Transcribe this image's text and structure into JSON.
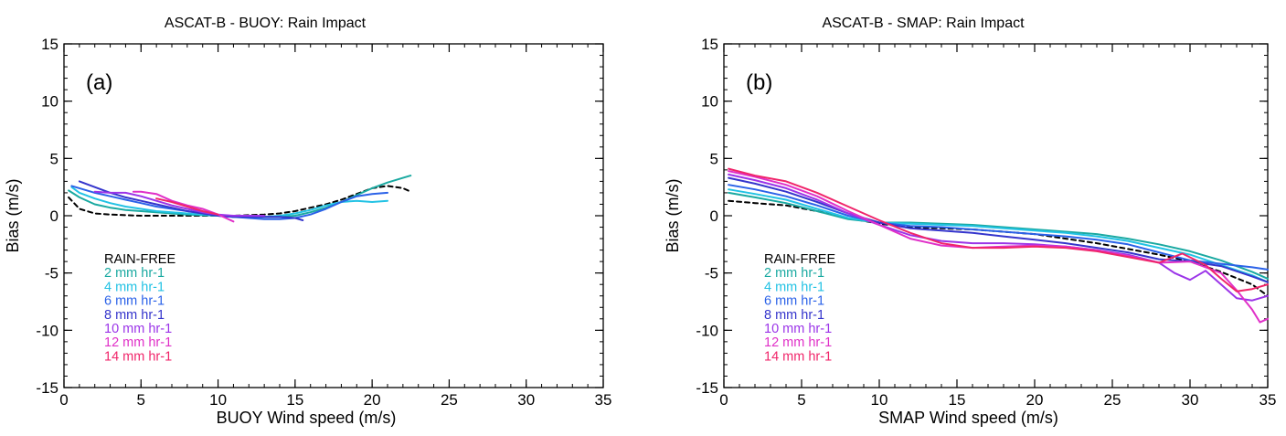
{
  "chart_data": [
    {
      "type": "line",
      "panel_label": "(a)",
      "title": "ASCAT-B - BUOY: Rain Impact",
      "xlabel": "BUOY Wind speed (m/s)",
      "ylabel": "Bias (m/s)",
      "xlim": [
        0,
        35
      ],
      "ylim": [
        -15,
        15
      ],
      "xticks": [
        0,
        5,
        10,
        15,
        20,
        25,
        30,
        35
      ],
      "yticks": [
        -15,
        -10,
        -5,
        0,
        5,
        10,
        15
      ],
      "legend_position": "lower-left",
      "series": [
        {
          "name": "RAIN-FREE",
          "color": "#000000",
          "dashed": true,
          "x": [
            0.3,
            1,
            2,
            3,
            4,
            5,
            6,
            7,
            8,
            9,
            10,
            11,
            12,
            13,
            14,
            15,
            16,
            17,
            18,
            19,
            20,
            21,
            22,
            22.5
          ],
          "y": [
            1.6,
            0.6,
            0.2,
            0.1,
            0.05,
            0.0,
            0.0,
            0.0,
            0.0,
            0.0,
            0.0,
            0.0,
            0.05,
            0.1,
            0.2,
            0.4,
            0.7,
            1.0,
            1.4,
            1.9,
            2.4,
            2.6,
            2.4,
            2.1
          ]
        },
        {
          "name": "2 mm hr-1",
          "color": "#1aa9a1",
          "x": [
            0.3,
            1,
            2,
            3,
            4,
            5,
            6,
            7,
            8,
            9,
            10,
            11,
            12,
            13,
            14,
            15,
            16,
            17,
            18,
            19,
            20,
            21,
            22,
            22.5
          ],
          "y": [
            2.2,
            1.6,
            1.0,
            0.7,
            0.5,
            0.4,
            0.3,
            0.2,
            0.1,
            0.05,
            0.0,
            -0.05,
            -0.1,
            -0.1,
            -0.1,
            0.0,
            0.3,
            0.7,
            1.2,
            1.8,
            2.4,
            2.9,
            3.3,
            3.5
          ]
        },
        {
          "name": "4 mm hr-1",
          "color": "#22c2e4",
          "x": [
            0.5,
            1,
            2,
            3,
            4,
            5,
            6,
            7,
            8,
            9,
            10,
            11,
            12,
            13,
            14,
            15,
            16,
            17,
            18,
            19,
            20,
            21
          ],
          "y": [
            2.5,
            2.0,
            1.5,
            1.1,
            0.8,
            0.6,
            0.4,
            0.3,
            0.2,
            0.1,
            0.0,
            -0.1,
            -0.1,
            -0.1,
            0.0,
            0.2,
            0.5,
            0.9,
            1.2,
            1.3,
            1.2,
            1.3
          ]
        },
        {
          "name": "6 mm hr-1",
          "color": "#2b62e8",
          "x": [
            0.5,
            1,
            2,
            3,
            4,
            5,
            6,
            7,
            8,
            9,
            10,
            11,
            12,
            13,
            14,
            15,
            16,
            17,
            18,
            19,
            20,
            21
          ],
          "y": [
            2.6,
            2.4,
            2.0,
            1.7,
            1.4,
            1.1,
            0.8,
            0.6,
            0.4,
            0.2,
            0.0,
            -0.1,
            -0.2,
            -0.3,
            -0.3,
            -0.2,
            0.1,
            0.6,
            1.2,
            1.7,
            1.9,
            2.0
          ]
        },
        {
          "name": "8 mm hr-1",
          "color": "#3535cc",
          "x": [
            1,
            2,
            3,
            4,
            5,
            6,
            7,
            8,
            9,
            10,
            11,
            12,
            13,
            14,
            15,
            15.5
          ],
          "y": [
            3.0,
            2.5,
            2.0,
            1.6,
            1.3,
            1.0,
            0.7,
            0.4,
            0.2,
            0.0,
            -0.1,
            -0.1,
            -0.1,
            -0.1,
            -0.2,
            -0.4
          ]
        },
        {
          "name": "10 mm hr-1",
          "color": "#9b34e8",
          "x": [
            2,
            3,
            4,
            5,
            6,
            7,
            8,
            9,
            10,
            11,
            12,
            13
          ],
          "y": [
            2.1,
            2.0,
            2.0,
            1.7,
            1.3,
            0.9,
            0.6,
            0.3,
            0.1,
            0.0,
            0.0,
            0.0
          ]
        },
        {
          "name": "12 mm hr-1",
          "color": "#e030c8",
          "x": [
            4.5,
            5,
            6,
            7,
            8,
            9,
            10,
            10.5,
            11
          ],
          "y": [
            2.1,
            2.1,
            1.9,
            1.3,
            0.9,
            0.6,
            0.1,
            -0.2,
            -0.5
          ]
        },
        {
          "name": "14 mm hr-1",
          "color": "#f0256a",
          "x": [
            6,
            7,
            8,
            9,
            10
          ],
          "y": [
            1.5,
            1.2,
            0.8,
            0.4,
            0.1
          ]
        }
      ]
    },
    {
      "type": "line",
      "panel_label": "(b)",
      "title": "ASCAT-B - SMAP: Rain Impact",
      "xlabel": "SMAP Wind speed (m/s)",
      "ylabel": "Bias (m/s)",
      "xlim": [
        0,
        35
      ],
      "ylim": [
        -15,
        15
      ],
      "xticks": [
        0,
        5,
        10,
        15,
        20,
        25,
        30,
        35
      ],
      "yticks": [
        -15,
        -10,
        -5,
        0,
        5,
        10,
        15
      ],
      "legend_position": "lower-left",
      "series": [
        {
          "name": "RAIN-FREE",
          "color": "#000000",
          "dashed": true,
          "x": [
            0.3,
            2,
            4,
            6,
            8,
            10,
            12,
            14,
            16,
            18,
            20,
            22,
            24,
            26,
            28,
            30,
            32,
            34,
            35
          ],
          "y": [
            1.3,
            1.1,
            0.9,
            0.4,
            -0.2,
            -0.7,
            -1.0,
            -1.1,
            -1.2,
            -1.4,
            -1.6,
            -2.0,
            -2.4,
            -2.9,
            -3.4,
            -4.0,
            -4.9,
            -6.0,
            -7.0
          ]
        },
        {
          "name": "2 mm hr-1",
          "color": "#1aa9a1",
          "x": [
            0.3,
            2,
            4,
            6,
            8,
            10,
            12,
            14,
            16,
            18,
            20,
            22,
            24,
            26,
            28,
            30,
            32,
            34,
            35
          ],
          "y": [
            2.0,
            1.6,
            1.1,
            0.4,
            -0.3,
            -0.6,
            -0.6,
            -0.7,
            -0.8,
            -1.0,
            -1.2,
            -1.4,
            -1.6,
            -2.0,
            -2.5,
            -3.1,
            -3.9,
            -4.9,
            -5.5
          ]
        },
        {
          "name": "4 mm hr-1",
          "color": "#22c2e4",
          "x": [
            0.3,
            2,
            4,
            6,
            8,
            10,
            12,
            14,
            16,
            18,
            20,
            22,
            24,
            26,
            28,
            30,
            32,
            34,
            35
          ],
          "y": [
            2.3,
            1.9,
            1.4,
            0.6,
            -0.2,
            -0.6,
            -0.7,
            -0.8,
            -0.9,
            -1.1,
            -1.3,
            -1.5,
            -1.8,
            -2.2,
            -2.8,
            -3.4,
            -4.3,
            -5.2,
            -5.8
          ]
        },
        {
          "name": "6 mm hr-1",
          "color": "#2b62e8",
          "x": [
            0.3,
            2,
            4,
            6,
            8,
            10,
            12,
            14,
            16,
            18,
            20,
            22,
            24,
            26,
            28,
            30,
            32,
            34,
            35
          ],
          "y": [
            2.7,
            2.3,
            1.7,
            0.9,
            0.0,
            -0.6,
            -0.9,
            -1.0,
            -1.2,
            -1.4,
            -1.6,
            -1.8,
            -2.1,
            -2.5,
            -3.2,
            -3.9,
            -4.2,
            -4.5,
            -4.7
          ]
        },
        {
          "name": "8 mm hr-1",
          "color": "#3535cc",
          "x": [
            0.3,
            2,
            4,
            6,
            8,
            10,
            12,
            14,
            16,
            18,
            20,
            22,
            24,
            26,
            28,
            30,
            32,
            34,
            35
          ],
          "y": [
            3.3,
            2.8,
            2.1,
            1.2,
            0.2,
            -0.6,
            -1.1,
            -1.3,
            -1.5,
            -1.8,
            -2.1,
            -2.4,
            -2.8,
            -3.2,
            -3.8,
            -4.0,
            -4.4,
            -5.3,
            -5.8
          ]
        },
        {
          "name": "10 mm hr-1",
          "color": "#9b34e8",
          "x": [
            0.3,
            2,
            4,
            6,
            8,
            10,
            12,
            14,
            16,
            18,
            20,
            22,
            24,
            26,
            28,
            29,
            30,
            31,
            32,
            33,
            34,
            35
          ],
          "y": [
            3.6,
            3.1,
            2.4,
            1.4,
            0.2,
            -0.8,
            -1.7,
            -2.2,
            -2.4,
            -2.4,
            -2.5,
            -2.7,
            -3.0,
            -3.4,
            -4.1,
            -5.0,
            -5.6,
            -4.8,
            -6.0,
            -7.2,
            -7.4,
            -7.0
          ]
        },
        {
          "name": "12 mm hr-1",
          "color": "#e030c8",
          "x": [
            0.3,
            2,
            4,
            6,
            8,
            10,
            12,
            14,
            16,
            18,
            20,
            22,
            24,
            26,
            28,
            30,
            32,
            33,
            34,
            34.5,
            35
          ],
          "y": [
            3.9,
            3.4,
            2.7,
            1.7,
            0.4,
            -0.8,
            -2.0,
            -2.6,
            -2.8,
            -2.7,
            -2.6,
            -2.7,
            -3.0,
            -3.5,
            -4.1,
            -4.0,
            -5.0,
            -6.5,
            -8.2,
            -9.3,
            -9.0
          ]
        },
        {
          "name": "14 mm hr-1",
          "color": "#f0256a",
          "x": [
            0.3,
            2,
            4,
            6,
            8,
            10,
            12,
            14,
            16,
            18,
            20,
            22,
            24,
            26,
            28,
            29.5,
            31,
            32,
            33,
            34,
            35
          ],
          "y": [
            4.1,
            3.5,
            3.0,
            2.0,
            0.8,
            -0.4,
            -1.5,
            -2.4,
            -2.8,
            -2.8,
            -2.7,
            -2.8,
            -3.1,
            -3.6,
            -4.1,
            -3.3,
            -4.3,
            -5.5,
            -6.6,
            -6.4,
            -6.0
          ]
        }
      ]
    }
  ]
}
